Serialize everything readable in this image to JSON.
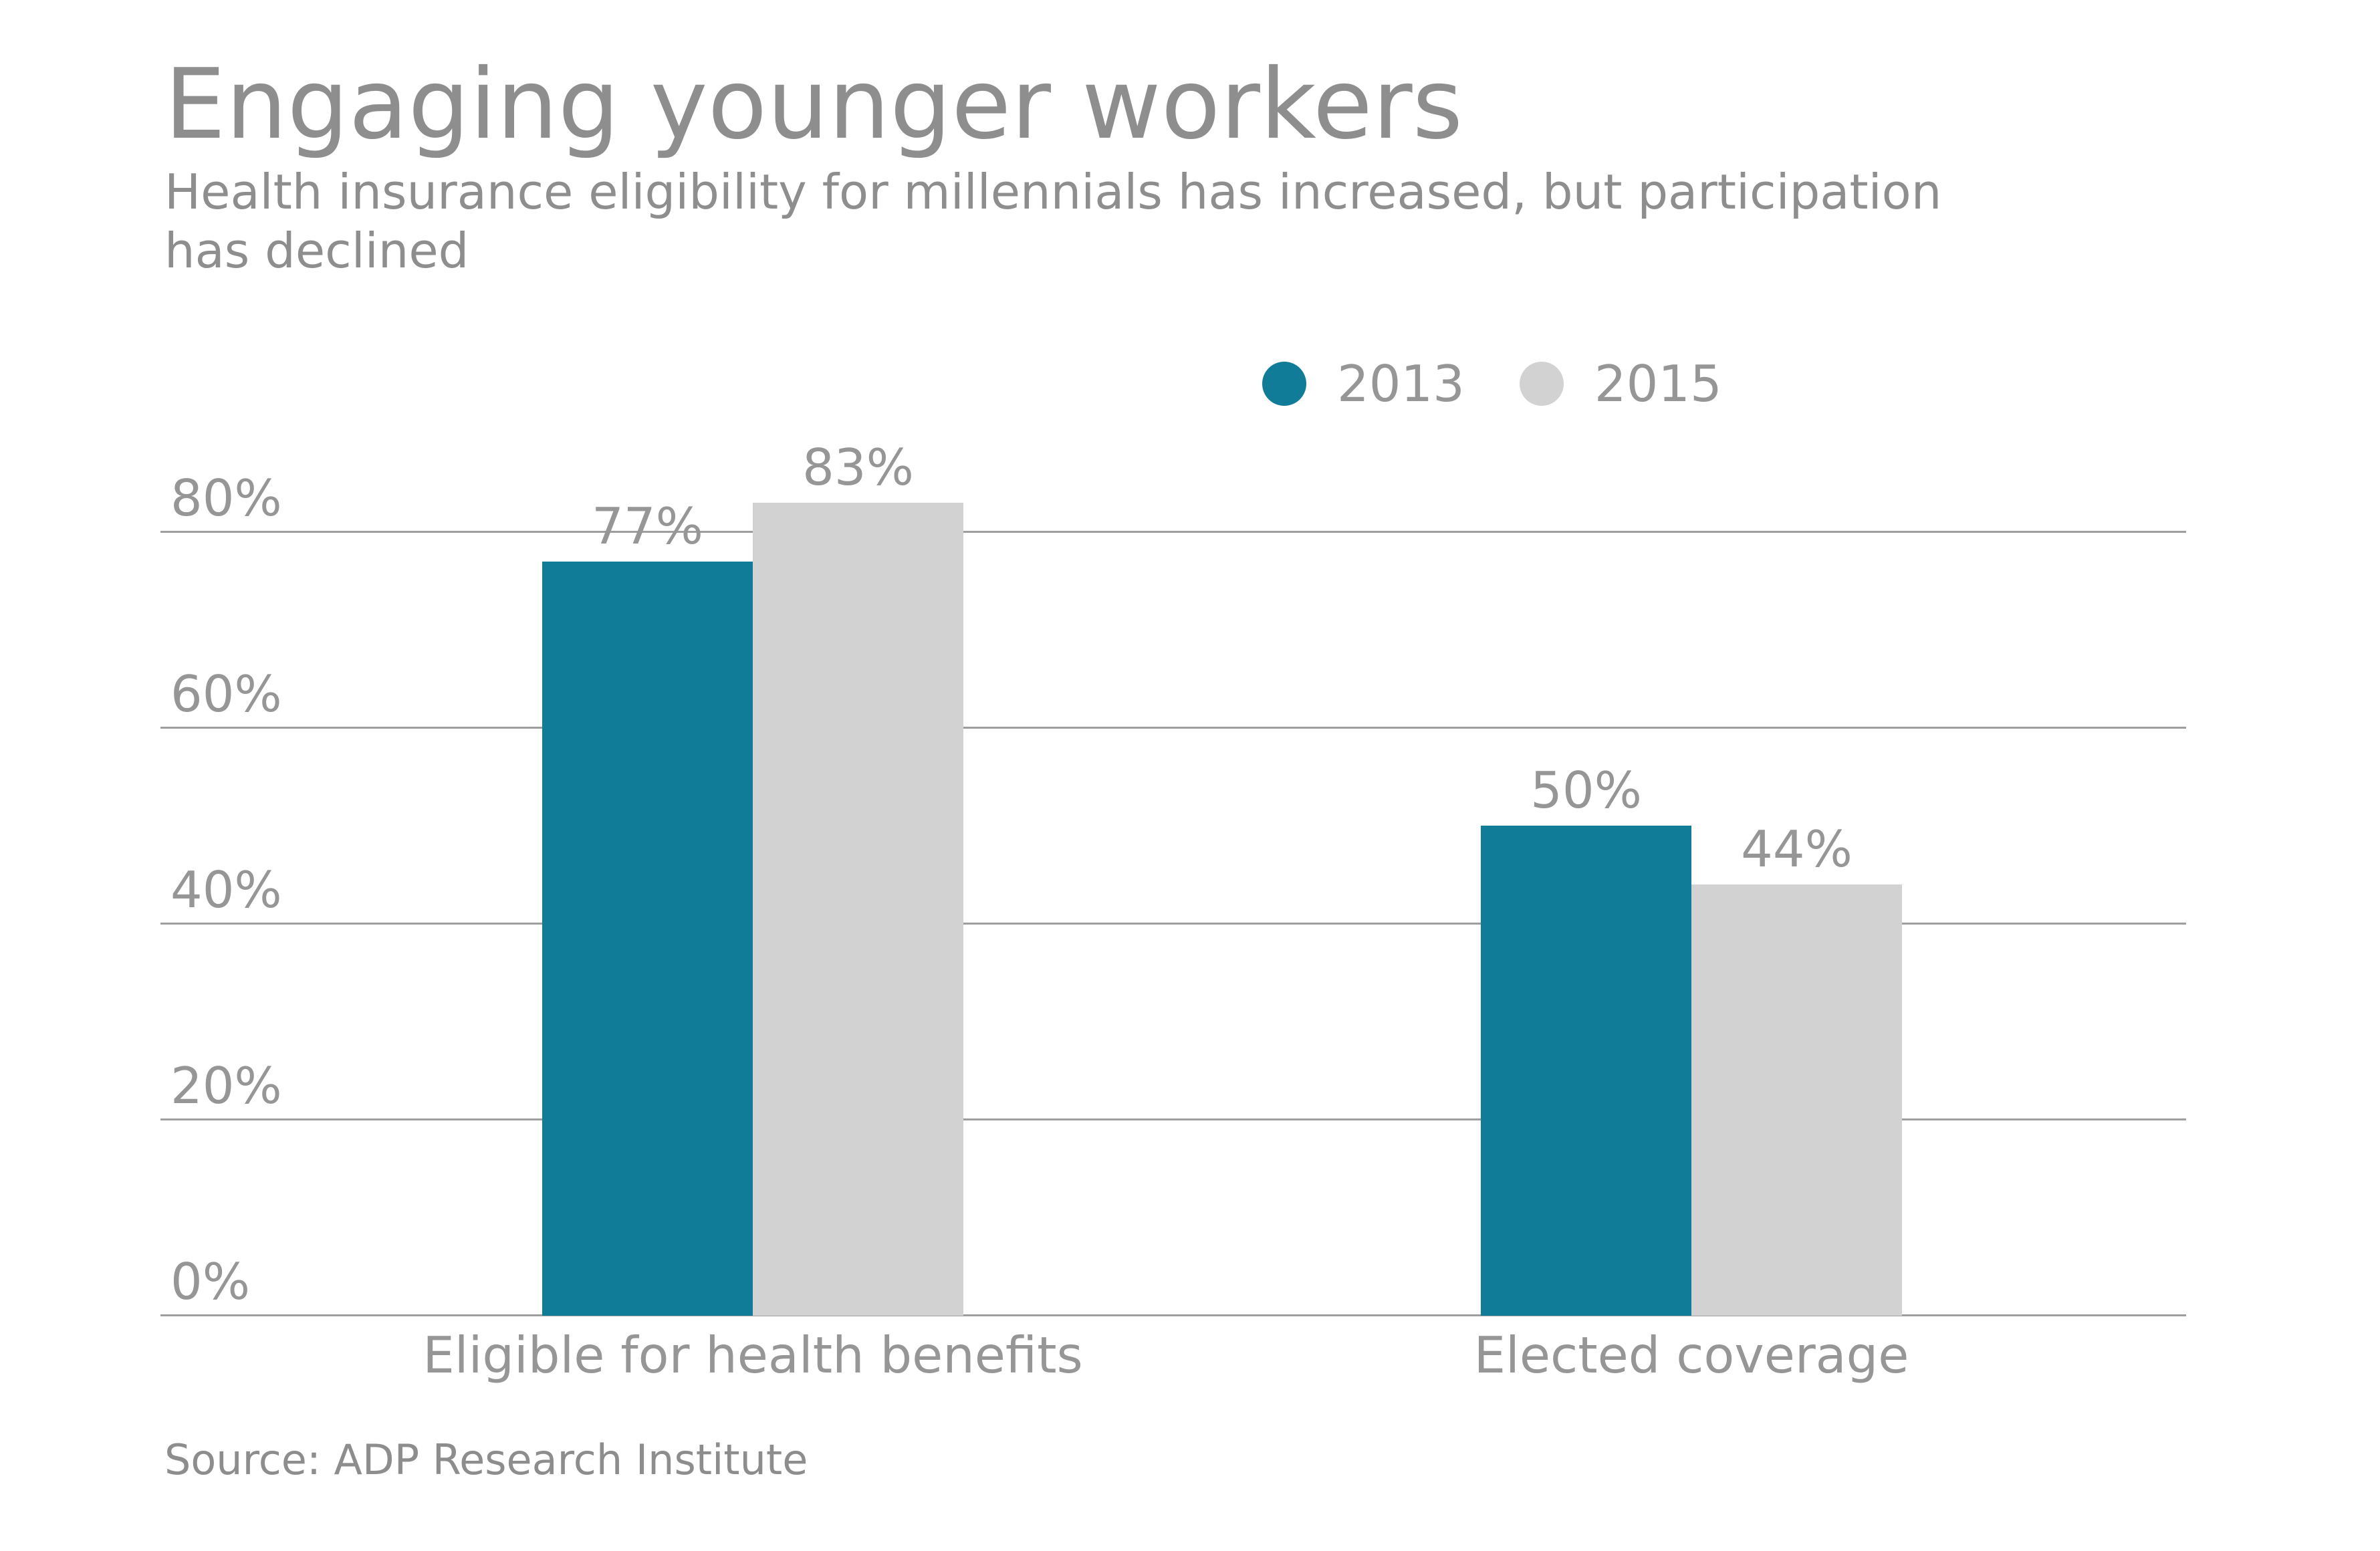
{
  "chart_data": {
    "type": "bar",
    "title": "Engaging younger workers",
    "subtitle_lines": [
      "Health insurance eligibility for millennials has increased, but participation",
      "has declined"
    ],
    "categories": [
      "Eligible for health benefits",
      "Elected coverage"
    ],
    "series": [
      {
        "name": "2013",
        "color": "#117C98",
        "values": [
          77,
          50
        ]
      },
      {
        "name": "2015",
        "color": "#D2D2D2",
        "values": [
          83,
          44
        ]
      }
    ],
    "data_labels": [
      "77%",
      "83%",
      "50%",
      "44%"
    ],
    "value_suffix": "%",
    "y_ticks": [
      {
        "value": 0,
        "label": "0%"
      },
      {
        "value": 20,
        "label": "20%"
      },
      {
        "value": 40,
        "label": "40%"
      },
      {
        "value": 60,
        "label": "60%"
      },
      {
        "value": 80,
        "label": "80%"
      }
    ],
    "ylim": [
      0,
      93
    ],
    "grid": true,
    "legend_position": "top-right",
    "source": "Source: ADP Research Institute",
    "colors": {
      "series_2013": "#117C98",
      "series_2015": "#D2D2D2",
      "gridline": "#9E9E9E",
      "heading_text": "#8E8E8E",
      "chart_text": "#969696"
    }
  }
}
